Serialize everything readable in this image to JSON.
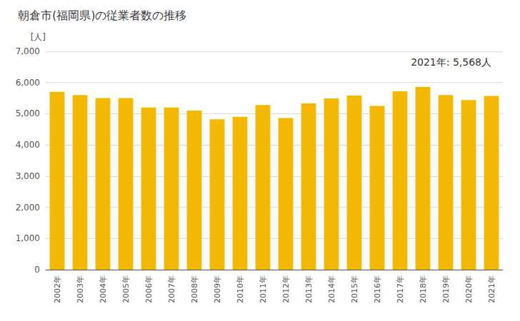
{
  "chart_data": {
    "type": "bar",
    "title": "朝倉市(福岡県)の従業者数の推移",
    "ylabel": "[人]",
    "annotation": "2021年: 5,568人",
    "categories": [
      "2002年",
      "2003年",
      "2004年",
      "2005年",
      "2006年",
      "2007年",
      "2008年",
      "2009年",
      "2010年",
      "2011年",
      "2012年",
      "2013年",
      "2014年",
      "2015年",
      "2016年",
      "2017年",
      "2018年",
      "2019年",
      "2020年",
      "2021年"
    ],
    "values": [
      5700,
      5600,
      5500,
      5500,
      5200,
      5200,
      5100,
      4820,
      4900,
      5280,
      4860,
      5330,
      5490,
      5580,
      5250,
      5720,
      5860,
      5600,
      5440,
      5568
    ],
    "color": "#F5B800",
    "ylim": [
      0,
      7000
    ],
    "yticks": [
      0,
      {
        "value": 1000,
        "label": "1,000"
      },
      {
        "value": 2000,
        "label": "2,000"
      },
      {
        "value": 3000,
        "label": "3,000"
      },
      {
        "value": 4000,
        "label": "4,000"
      },
      {
        "value": 5000,
        "label": "5,000"
      },
      {
        "value": 6000,
        "label": "6,000"
      },
      {
        "value": 7000,
        "label": "7,000"
      }
    ],
    "grid": true
  }
}
